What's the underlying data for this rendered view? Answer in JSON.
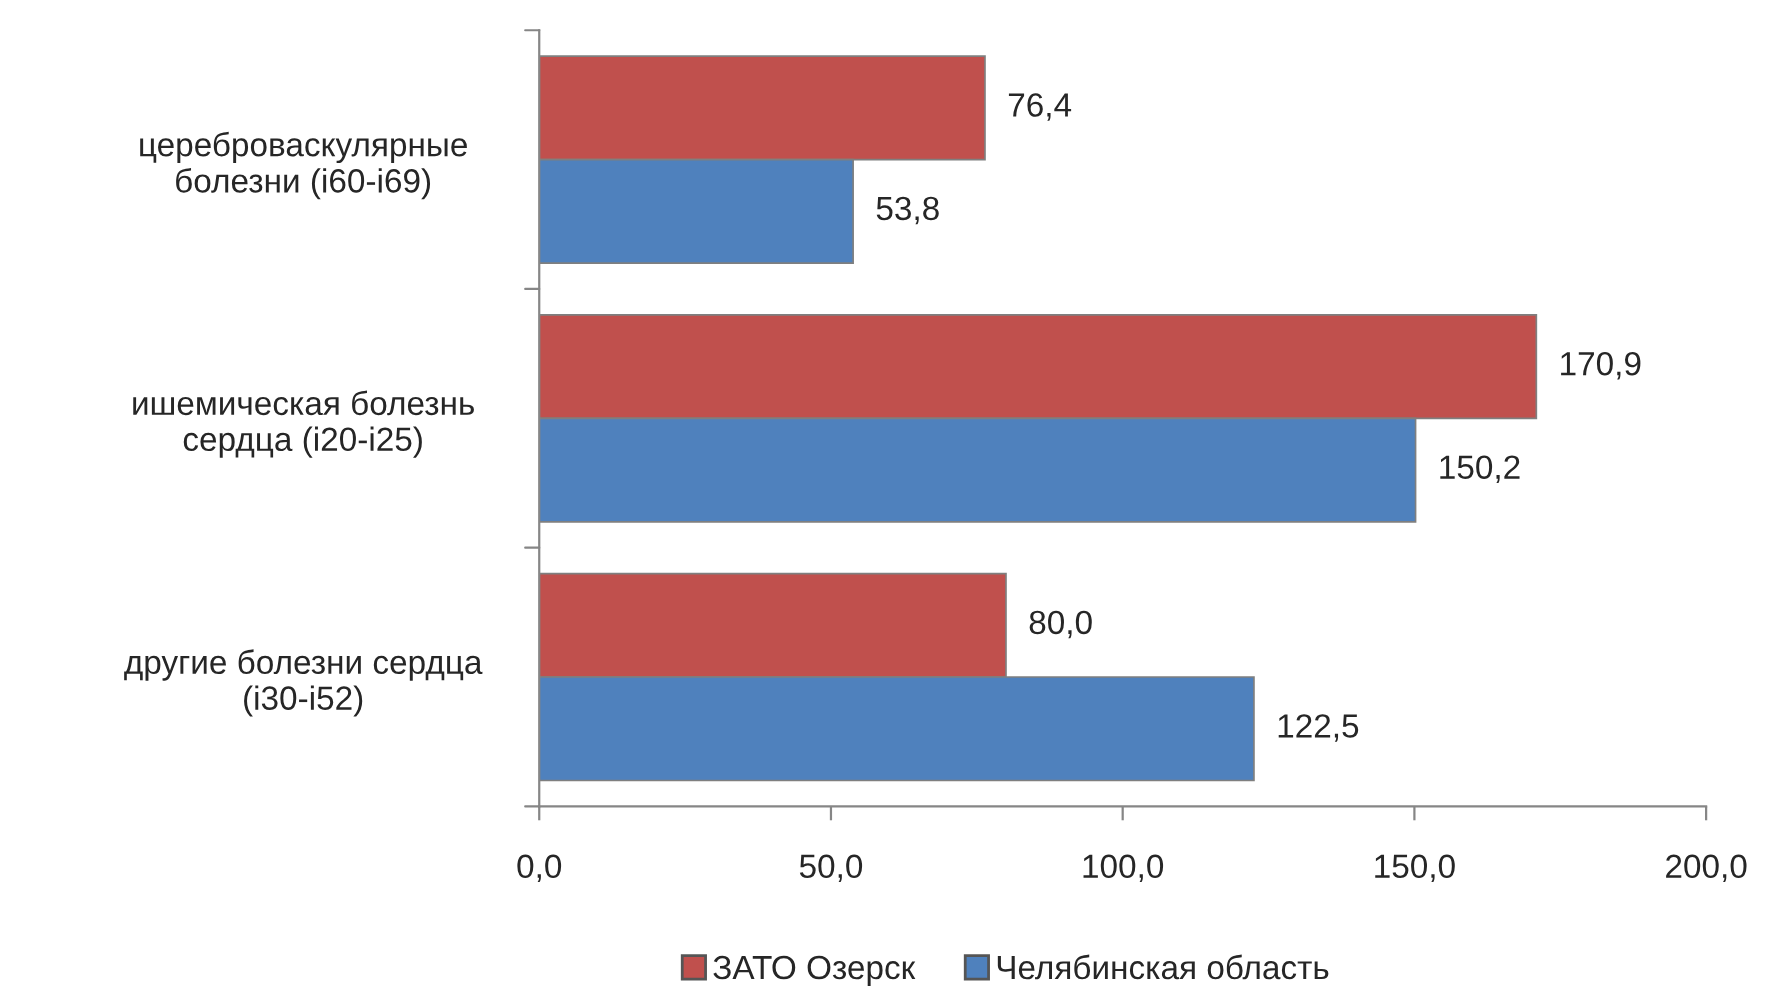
{
  "chart_data": {
    "type": "bar",
    "orientation": "horizontal",
    "categories": [
      "цереброваскулярные\nболезни (i60-i69)",
      "ишемическая болезнь\nсердца (i20-i25)",
      "другие болезни сердца\n(i30-i52)"
    ],
    "series": [
      {
        "name": "ЗАТО Озерск",
        "color": "#c0504d",
        "values": [
          76.4,
          170.9,
          80.0
        ],
        "value_labels": [
          "76,4",
          "170,9",
          "80,0"
        ]
      },
      {
        "name": "Челябинская область",
        "color": "#4f81bd",
        "values": [
          53.8,
          150.2,
          122.5
        ],
        "value_labels": [
          "53,8",
          "150,2",
          "122,5"
        ]
      }
    ],
    "xlim": [
      0,
      200
    ],
    "xticks": [
      {
        "value": 0,
        "label": "0,0"
      },
      {
        "value": 50,
        "label": "50,0"
      },
      {
        "value": 100,
        "label": "100,0"
      },
      {
        "value": 150,
        "label": "150,0"
      },
      {
        "value": 200,
        "label": "200,0"
      }
    ],
    "grid": false,
    "legend": "bottom"
  }
}
